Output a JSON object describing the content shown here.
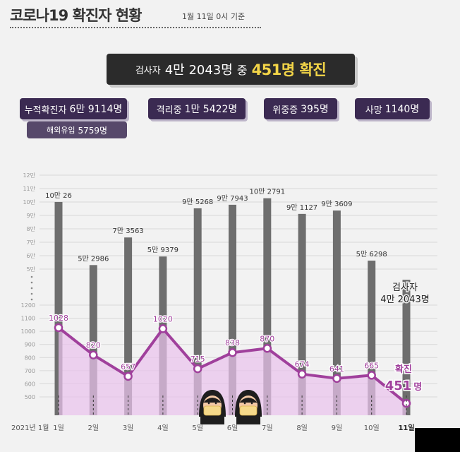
{
  "header": {
    "title": "코로나19 확진자 현황",
    "subtitle": "1월 11일 0시 기준"
  },
  "summary": {
    "tested_label": "검사자",
    "tested_value": "4만 2043명",
    "connector": "중",
    "confirmed_text": "451명 확진"
  },
  "stats": {
    "cumulative": {
      "label": "누적확진자",
      "value": "6만 9114명"
    },
    "overseas": {
      "label": "해외유입",
      "value": "5759명"
    },
    "isolated": {
      "label": "격리중",
      "value": "1만 5422명"
    },
    "critical": {
      "label": "위중증",
      "value": "395명"
    },
    "deaths": {
      "label": "사망",
      "value": "1140명"
    }
  },
  "chart_data": {
    "type": "bar",
    "year_label": "2021년 1월",
    "categories": [
      "1일",
      "2일",
      "3일",
      "4일",
      "5일",
      "6일",
      "7일",
      "8일",
      "9일",
      "10일",
      "11일"
    ],
    "upper_axis": {
      "ticks": [
        50000,
        60000,
        70000,
        80000,
        90000,
        100000,
        110000,
        120000
      ],
      "tick_labels": [
        "5만",
        "6만",
        "7만",
        "8만",
        "9만",
        "10만",
        "11만",
        "12만"
      ]
    },
    "lower_axis": {
      "ticks": [
        500,
        600,
        700,
        800,
        900,
        1000,
        1100,
        1200
      ],
      "tick_labels": [
        "500",
        "600",
        "700",
        "800",
        "900",
        "1000",
        "1100",
        "1200"
      ]
    },
    "series": [
      {
        "name": "검사자",
        "values": [
          100026,
          52986,
          73563,
          59379,
          95268,
          97943,
          102791,
          91127,
          93609,
          56298,
          42043
        ],
        "labels": [
          "10만 26",
          "5만 2986",
          "7만 3563",
          "5만 9379",
          "9만 5268",
          "9만 7943",
          "10만 2791",
          "9만 1127",
          "9만 3609",
          "5만 6298",
          ""
        ],
        "color": "#6e6e6e"
      },
      {
        "name": "확진",
        "values": [
          1028,
          820,
          657,
          1020,
          715,
          838,
          870,
          674,
          641,
          665,
          451
        ],
        "labels": [
          "1028",
          "820",
          "657",
          "1020",
          "715",
          "838",
          "870",
          "674",
          "641",
          "665",
          ""
        ],
        "color": "#a0409c"
      }
    ],
    "last_day_callouts": {
      "tested_label": "검사자",
      "tested_value": "4만 2043명",
      "confirmed_label": "확진",
      "confirmed_value": "451",
      "confirmed_unit": "명"
    }
  }
}
